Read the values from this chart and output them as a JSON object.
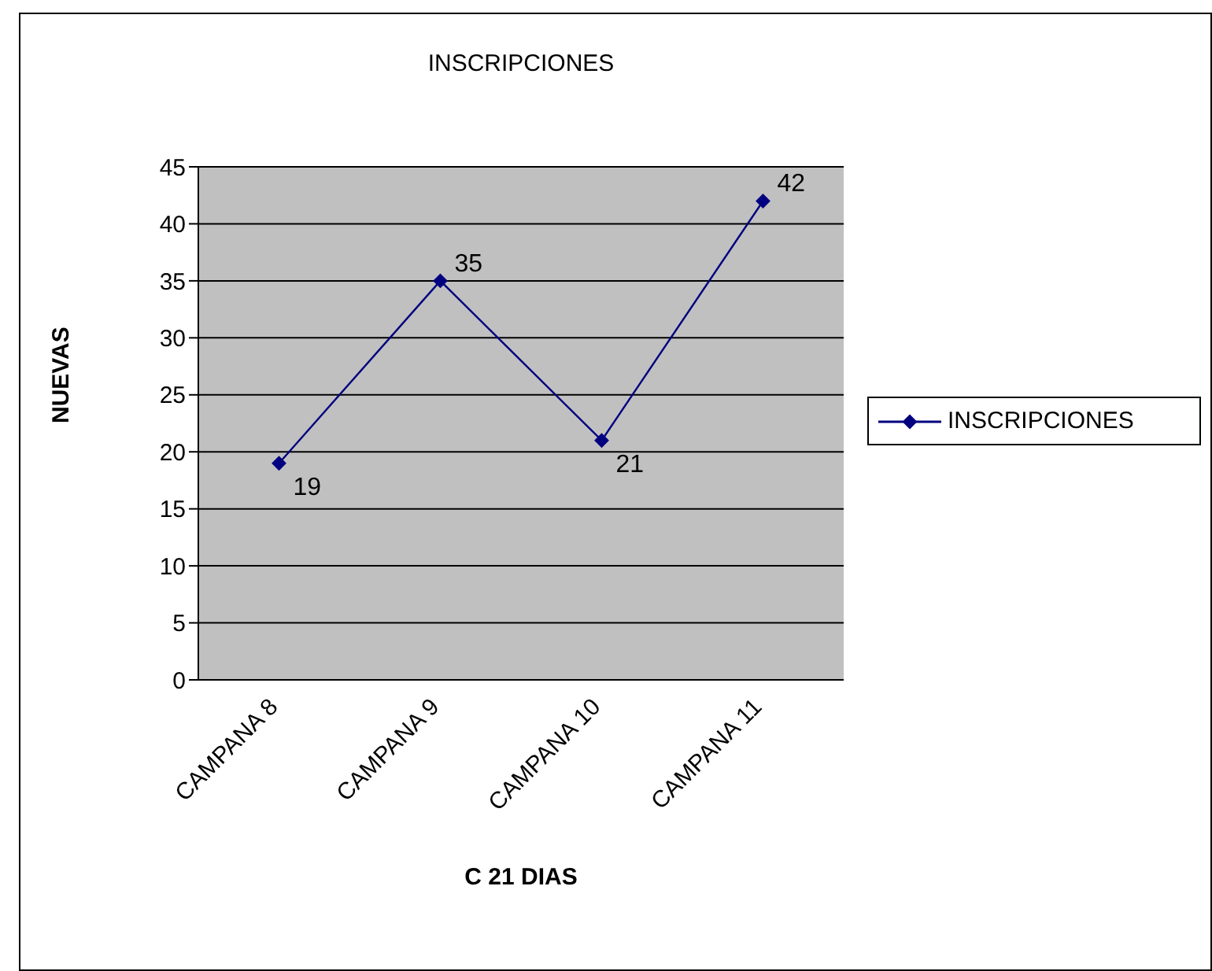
{
  "chart_data": {
    "type": "line",
    "title": "INSCRIPCIONES",
    "xlabel": "C 21 DIAS",
    "ylabel": "NUEVAS",
    "categories": [
      "CAMPANA 8",
      "CAMPANA 9",
      "CAMPANA 10",
      "CAMPANA 11"
    ],
    "series": [
      {
        "name": "INSCRIPCIONES",
        "color": "#000080",
        "values": [
          19,
          35,
          21,
          42
        ]
      }
    ],
    "ylim": [
      0,
      45
    ],
    "yticks": [
      0,
      5,
      10,
      15,
      20,
      25,
      30,
      35,
      40,
      45
    ],
    "grid": "y",
    "legend": "right",
    "marker": "diamond",
    "line_style": "solid",
    "data_labels": true
  }
}
